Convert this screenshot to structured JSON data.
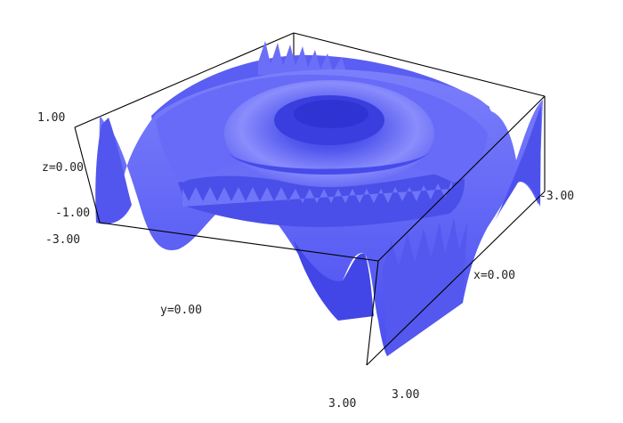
{
  "chart_data": {
    "type": "surface3d",
    "function": "z = cos(x^2 + y^2) (radial rings)",
    "x_range": [
      -3,
      3
    ],
    "y_range": [
      -3,
      3
    ],
    "z_range": [
      -1,
      1
    ],
    "surface_color": "#5f63f5",
    "edge_color": "#000000",
    "labels": {
      "z_max": "1.00",
      "z_mid": "z=0.00",
      "z_min": "-1.00",
      "y_min": "-3.00",
      "y_mid": "y=0.00",
      "y_max": "3.00",
      "x_max": "3.00",
      "x_mid": "x=0.00",
      "x_min": "-3.00"
    }
  }
}
